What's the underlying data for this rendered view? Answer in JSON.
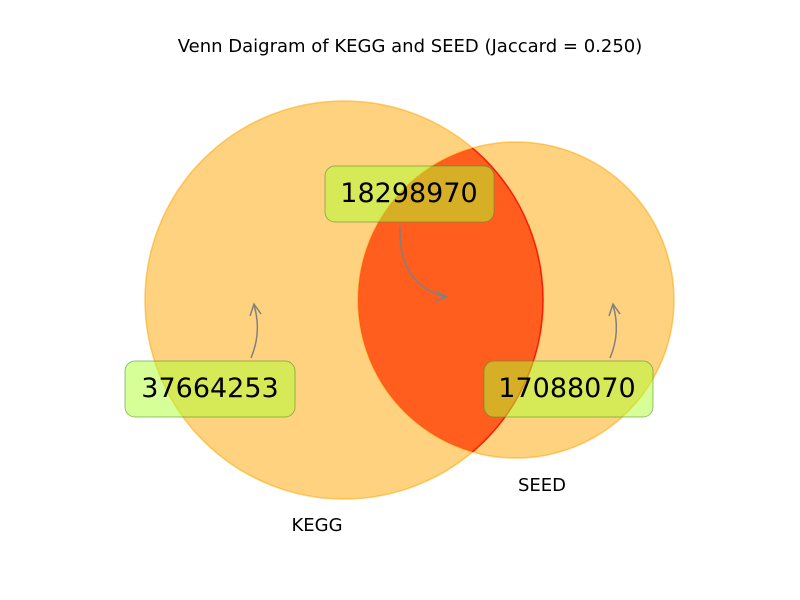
{
  "title": "Venn Daigram of KEGG and SEED (Jaccard = 0.250)",
  "sets": [
    {
      "label": "KEGG",
      "color": "#ffa500"
    },
    {
      "label": "SEED",
      "color": "#ffa500"
    }
  ],
  "intersection_color": "#ff0000",
  "box_color": "#adff2f",
  "arrow_color": "#808080",
  "regions": {
    "kegg_only": "37664253",
    "intersection": "18298970",
    "seed_only": "17088070"
  }
}
